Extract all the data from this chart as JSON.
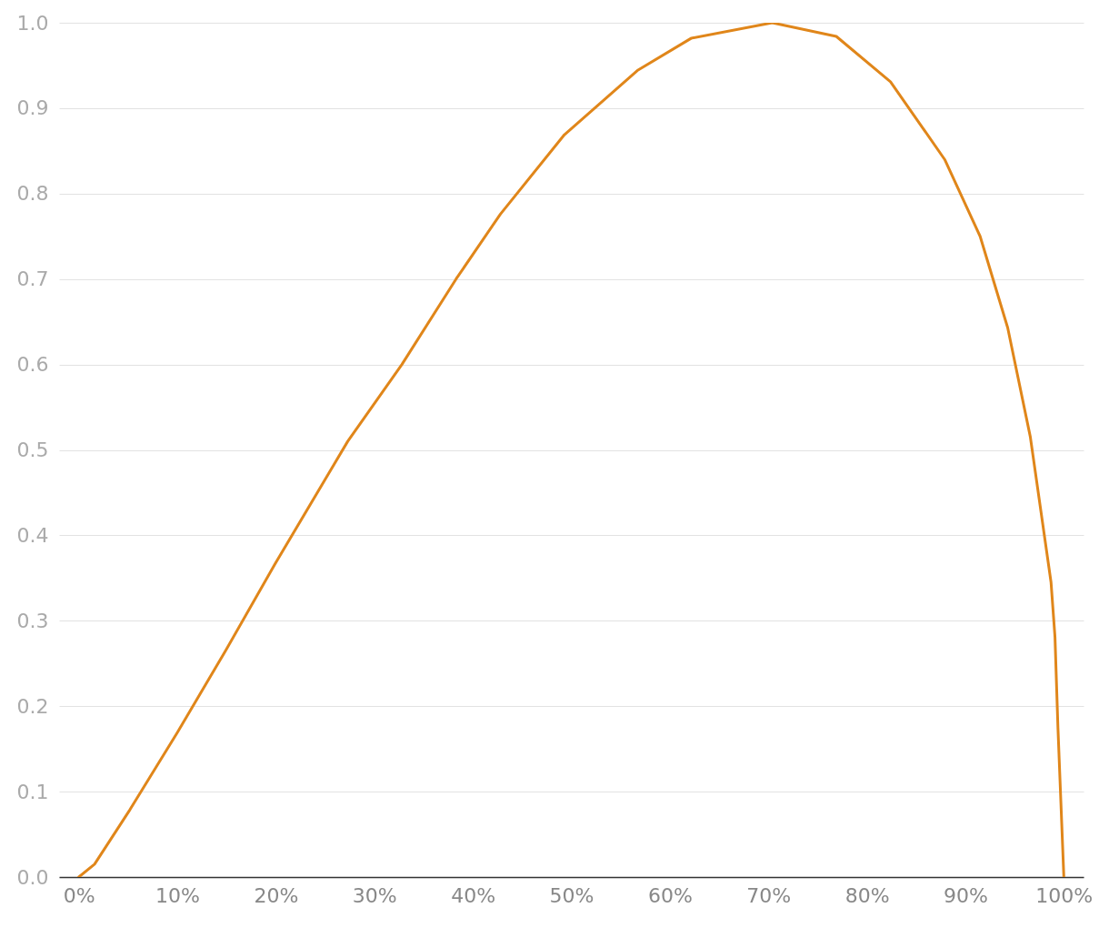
{
  "chart_data": {
    "type": "line",
    "x": [
      0,
      1.6,
      5.2,
      10,
      14.9,
      19.9,
      27.3,
      32.8,
      38.3,
      42.8,
      49.3,
      56.7,
      62.2,
      70.4,
      76.9,
      82.4,
      87.9,
      91.5,
      94.3,
      96.6,
      98.7,
      99.1,
      99.4,
      100
    ],
    "series": [
      {
        "color": "#e0861a",
        "values": [
          0,
          0.015,
          0.079,
          0.169,
          0.265,
          0.366,
          0.51,
          0.6,
          0.7,
          0.776,
          0.869,
          0.944,
          0.982,
          1.0,
          0.984,
          0.931,
          0.84,
          0.75,
          0.643,
          0.515,
          0.345,
          0.281,
          0.175,
          0
        ]
      }
    ],
    "xlim": [
      -2,
      102
    ],
    "xticks": [
      {
        "value": 0,
        "label": "0%"
      },
      {
        "value": 10,
        "label": "10%"
      },
      {
        "value": 20,
        "label": "20%"
      },
      {
        "value": 30,
        "label": "30%"
      },
      {
        "value": 40,
        "label": "40%"
      },
      {
        "value": 50,
        "label": "50%"
      },
      {
        "value": 60,
        "label": "60%"
      },
      {
        "value": 70,
        "label": "70%"
      },
      {
        "value": 80,
        "label": "80%"
      },
      {
        "value": 90,
        "label": "90%"
      },
      {
        "value": 100,
        "label": "100%"
      }
    ],
    "ylim": [
      0,
      1
    ],
    "yticks": [
      {
        "value": 0,
        "label": "0.0"
      },
      0.1,
      0.2,
      0.3,
      0.4,
      0.5,
      0.6,
      0.7,
      0.8,
      0.9,
      {
        "value": 1,
        "label": "1.0"
      }
    ],
    "grid": "y"
  }
}
